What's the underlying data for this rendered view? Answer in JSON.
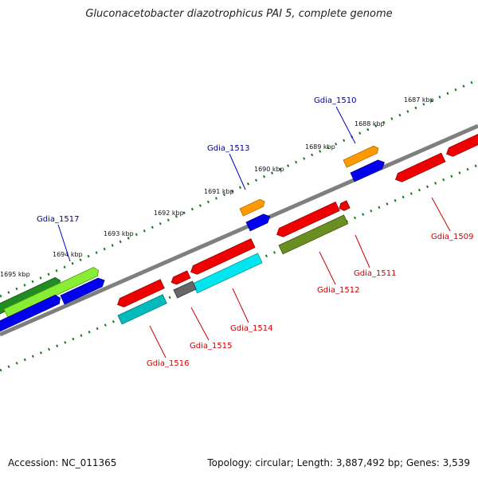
{
  "title": "Gluconacetobacter diazotrophicus PAI 5, complete genome",
  "footer": {
    "accession": "Accession: NC_011365",
    "summary": "Topology: circular; Length: 3,887,492 bp; Genes: 3,539"
  },
  "colors": {
    "backbone": "#7f7f7f",
    "forward_label": "#00008b",
    "reverse_label": "#cc0000",
    "dots": "#1a7a1a"
  },
  "scale": {
    "tick_labels": [
      {
        "label": "1687 kbp",
        "kbp": 1687
      },
      {
        "label": "1688 kbp",
        "kbp": 1688
      },
      {
        "label": "1689 kbp",
        "kbp": 1689
      },
      {
        "label": "1690 kbp",
        "kbp": 1690
      },
      {
        "label": "1691 kbp",
        "kbp": 1691
      },
      {
        "label": "1692 kbp",
        "kbp": 1692
      },
      {
        "label": "1693 kbp",
        "kbp": 1693
      },
      {
        "label": "1694 kbp",
        "kbp": 1694
      },
      {
        "label": "1695 kbp",
        "kbp": 1695
      }
    ]
  },
  "gene_labels": [
    {
      "name": "Gdia_1510",
      "strand": "forward"
    },
    {
      "name": "Gdia_1513",
      "strand": "forward"
    },
    {
      "name": "Gdia_1517",
      "strand": "forward"
    },
    {
      "name": "Gdia_1509",
      "strand": "reverse"
    },
    {
      "name": "Gdia_1511",
      "strand": "reverse"
    },
    {
      "name": "Gdia_1512",
      "strand": "reverse"
    },
    {
      "name": "Gdia_1514",
      "strand": "reverse"
    },
    {
      "name": "Gdia_1515",
      "strand": "reverse"
    },
    {
      "name": "Gdia_1516",
      "strand": "reverse"
    }
  ],
  "features": [
    {
      "name": "orange-feature-1510",
      "color": "#ff9900"
    },
    {
      "name": "blue-feature-1510",
      "color": "#0000ee"
    },
    {
      "name": "orange-feature-1513",
      "color": "#ff9900"
    },
    {
      "name": "blue-feature-1513",
      "color": "#0000ee"
    },
    {
      "name": "green-feature-1517-dark",
      "color": "#228b22"
    },
    {
      "name": "green-feature-1517-light",
      "color": "#88ee33"
    },
    {
      "name": "blue-feature-1517-a",
      "color": "#0000ee"
    },
    {
      "name": "blue-feature-1517-b",
      "color": "#0000ee"
    },
    {
      "name": "red-feature-1509",
      "color": "#ee0000"
    },
    {
      "name": "red-feature-right-edge",
      "color": "#ee0000"
    },
    {
      "name": "red-feature-1511-large",
      "color": "#ee0000"
    },
    {
      "name": "red-feature-1511-small",
      "color": "#ee0000"
    },
    {
      "name": "olive-feature-1512",
      "color": "#6b8e23"
    },
    {
      "name": "red-feature-1514",
      "color": "#ee0000"
    },
    {
      "name": "cyan-feature-1514",
      "color": "#00e5ee"
    },
    {
      "name": "gray-feature-1515",
      "color": "#666666"
    },
    {
      "name": "red-feature-1515-small",
      "color": "#ee0000"
    },
    {
      "name": "red-feature-1516",
      "color": "#ee0000"
    },
    {
      "name": "teal-feature-1516",
      "color": "#00bbbb"
    }
  ]
}
